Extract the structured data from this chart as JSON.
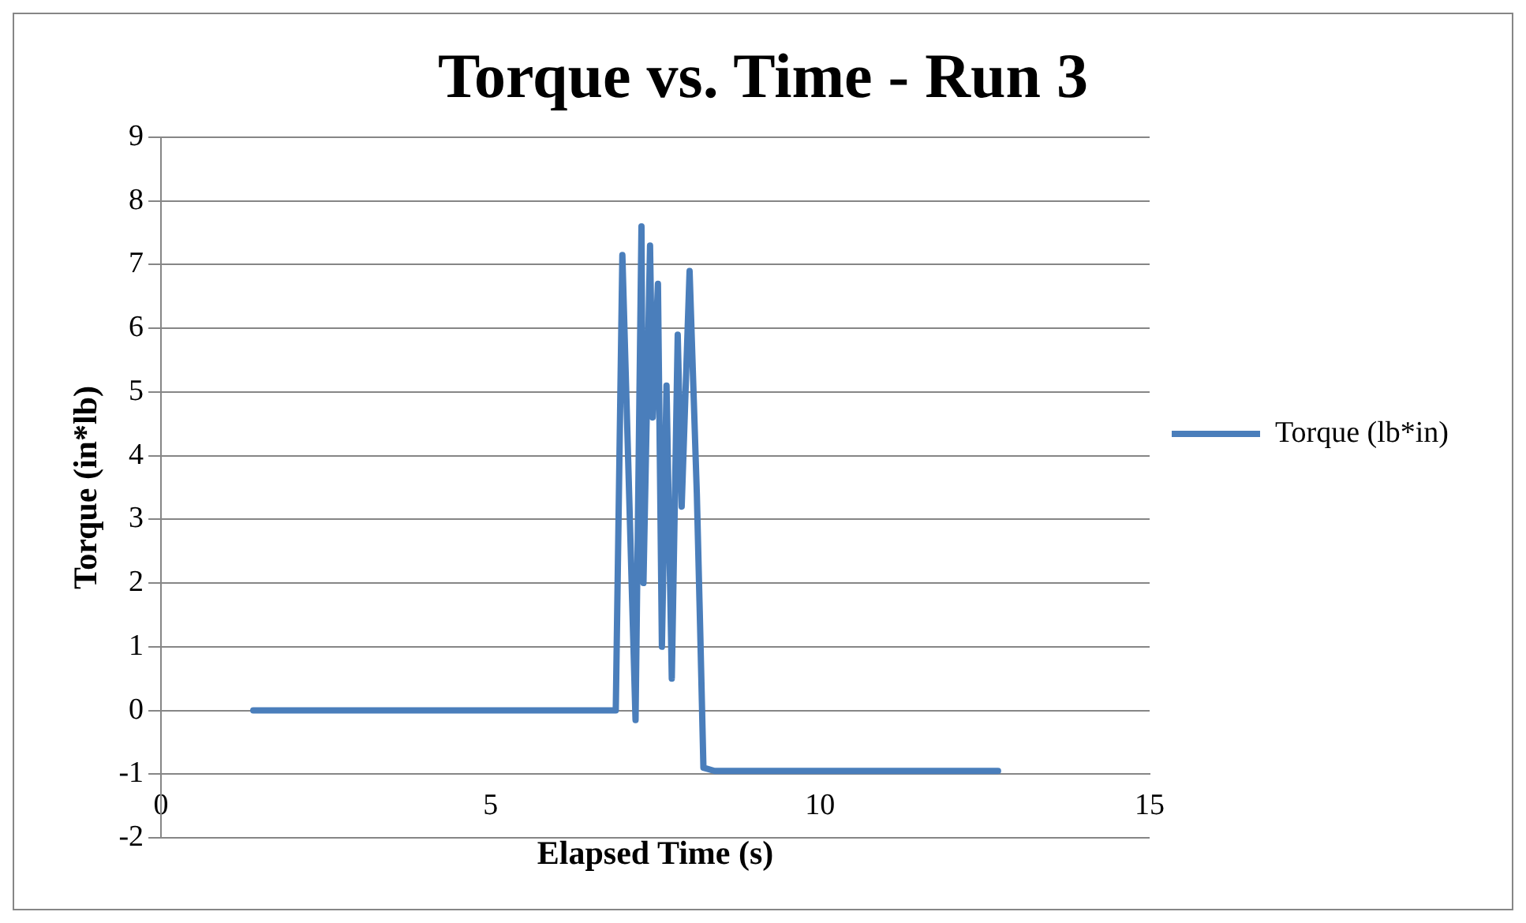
{
  "chart_data": {
    "type": "line",
    "title": "Torque vs. Time - Run 3",
    "xlabel": "Elapsed Time (s)",
    "ylabel": "Torque (in*lb)",
    "xlim": [
      0,
      15
    ],
    "xticks": [
      0,
      5,
      10,
      15
    ],
    "ylim": [
      -2,
      9
    ],
    "yticks": [
      -2,
      -1,
      0,
      1,
      2,
      3,
      4,
      5,
      6,
      7,
      8,
      9
    ],
    "grid": "y",
    "legend": "right",
    "marker": "none",
    "line_style": "solid",
    "series": [
      {
        "name": "Torque (lb*in)",
        "color": "#4a7ebb",
        "x": [
          1.4,
          3,
          5,
          6.9,
          7.0,
          7.2,
          7.29,
          7.32,
          7.42,
          7.46,
          7.54,
          7.6,
          7.67,
          7.75,
          7.84,
          7.9,
          8.02,
          8.13,
          8.18,
          8.23,
          8.4,
          10,
          12.7
        ],
        "values": [
          0,
          0,
          0,
          0,
          7.15,
          -0.15,
          7.6,
          2.0,
          7.3,
          4.6,
          6.7,
          1.0,
          5.1,
          0.5,
          5.9,
          3.2,
          6.9,
          3.4,
          1.3,
          -0.9,
          -0.95,
          -0.95,
          -0.95
        ]
      }
    ]
  }
}
